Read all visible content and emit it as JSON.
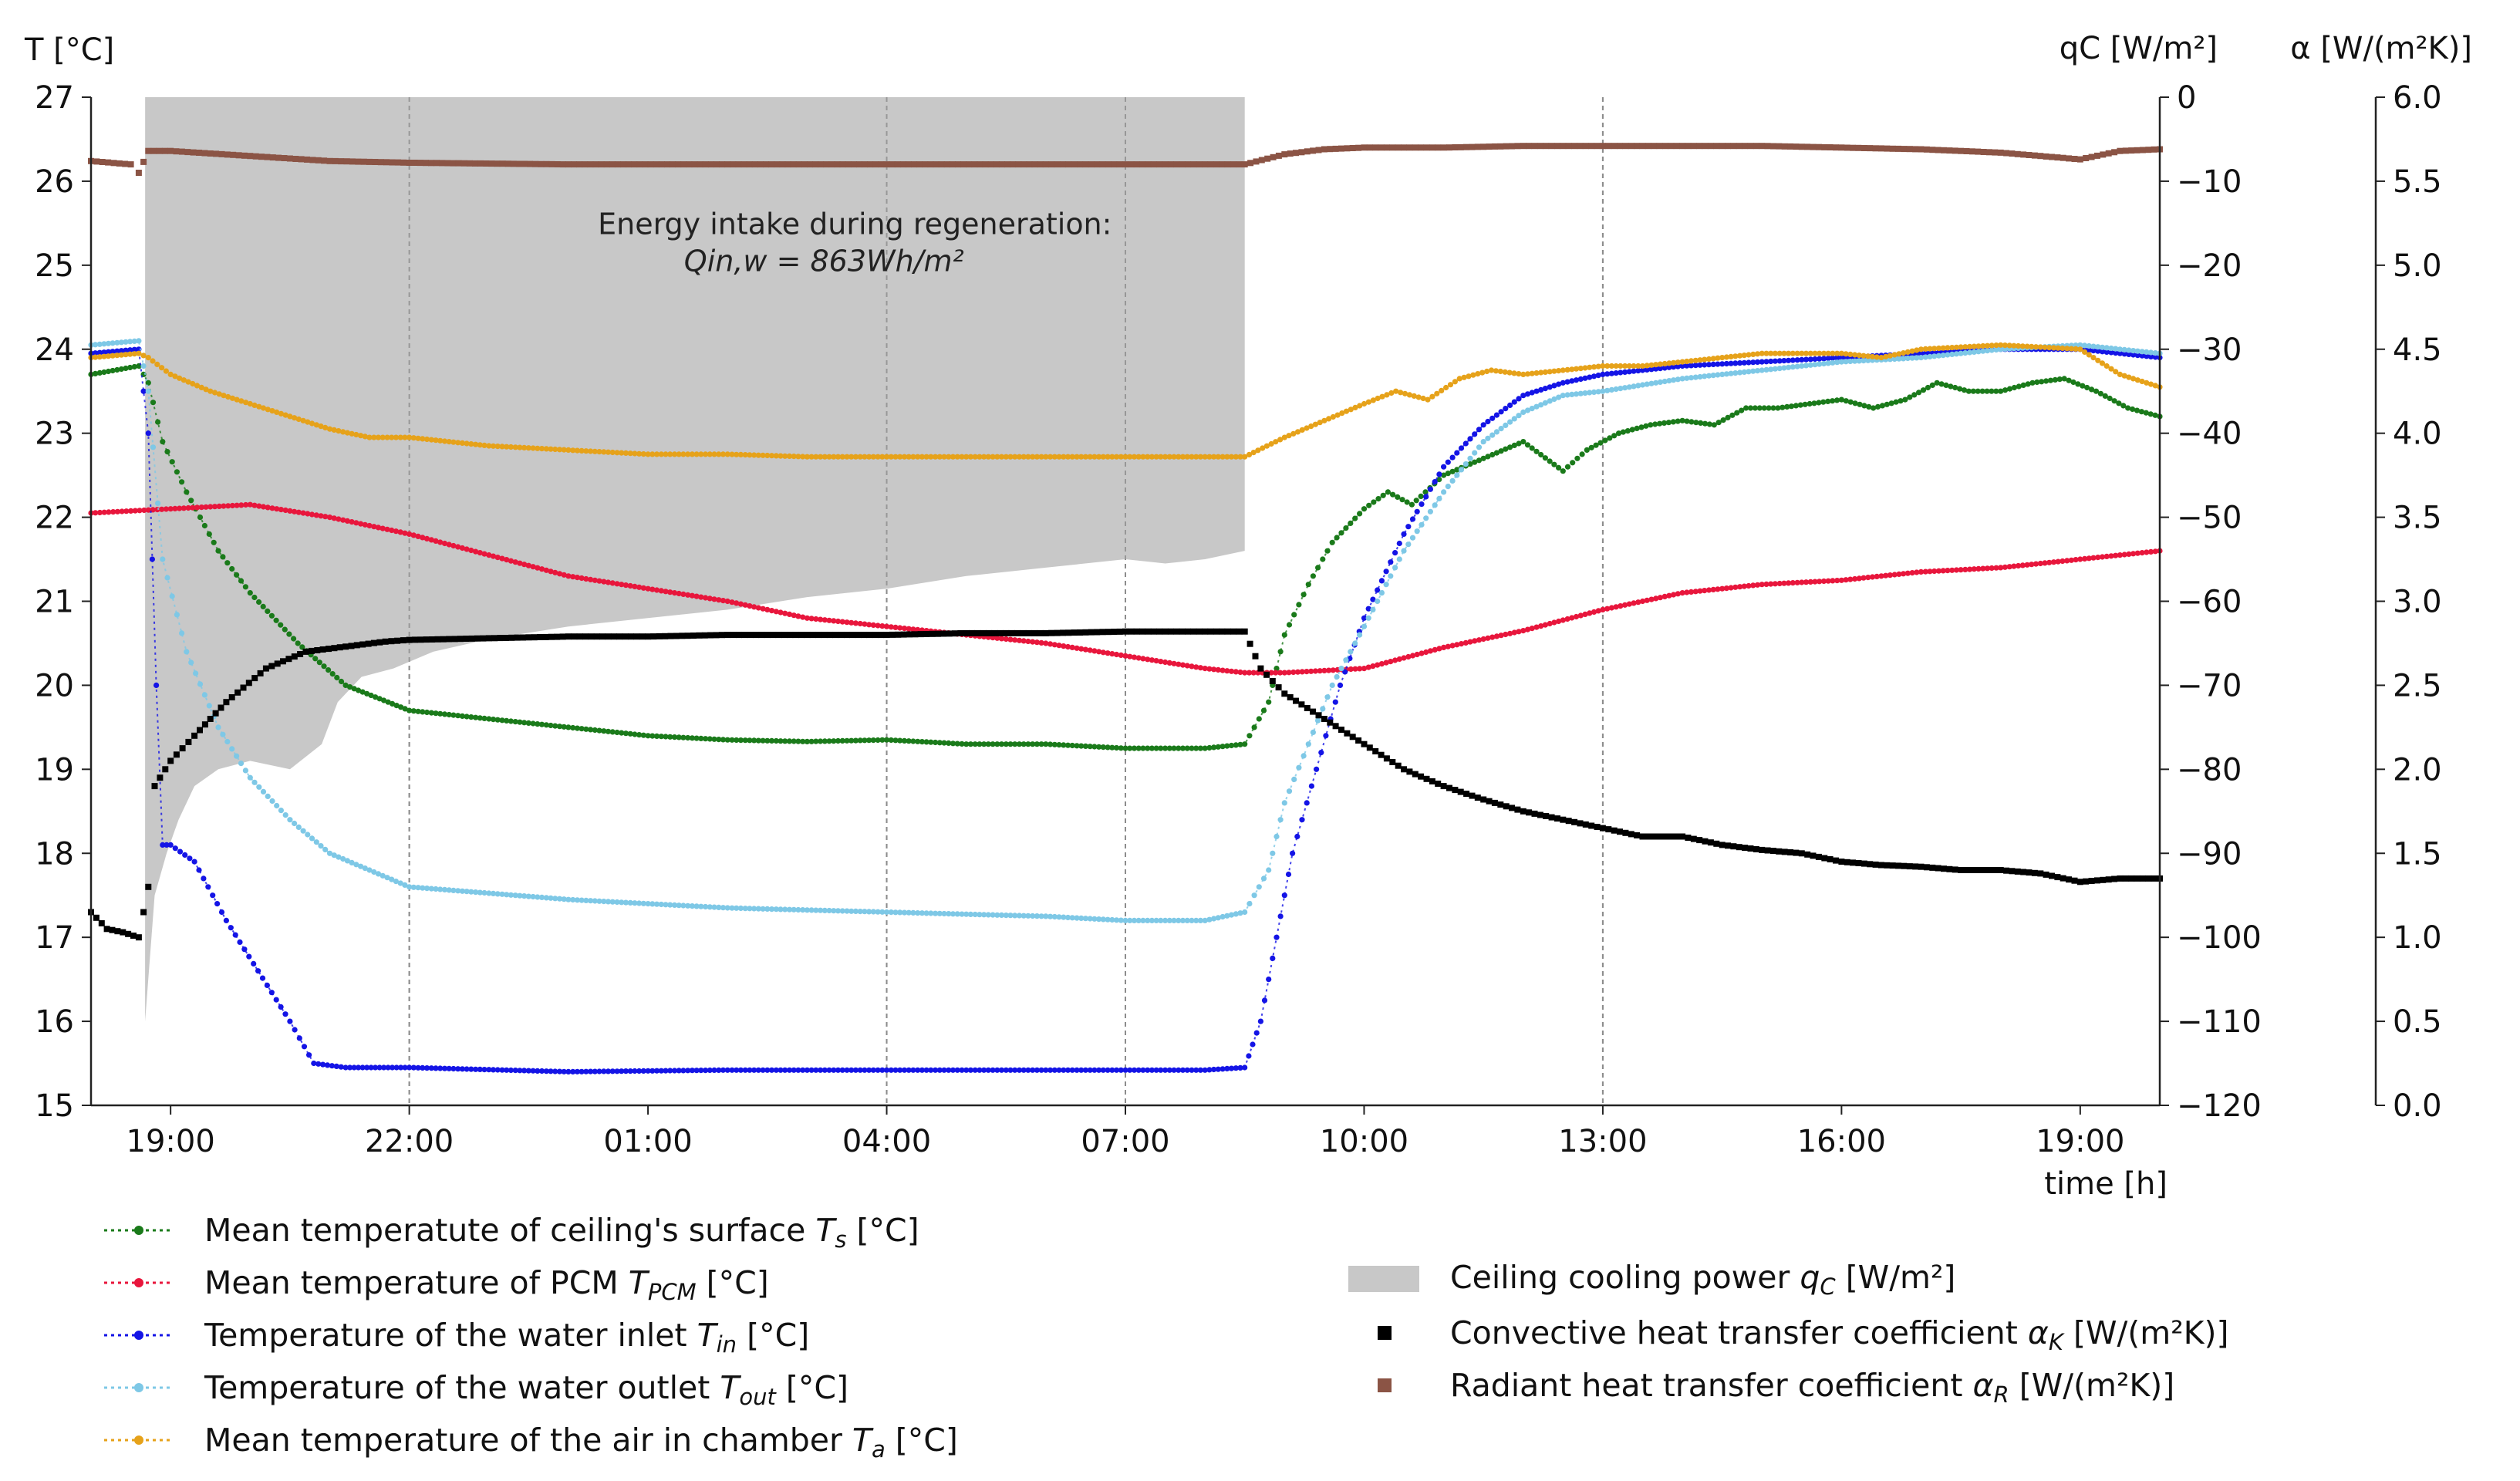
{
  "chart_data": {
    "type": "line",
    "title": "",
    "xlabel": "time [h]",
    "x_unit": "hours since 18:00",
    "xlim": [
      0,
      26
    ],
    "x_ticks": [
      {
        "x": 1,
        "label": "19:00"
      },
      {
        "x": 4,
        "label": "22:00"
      },
      {
        "x": 7,
        "label": "01:00"
      },
      {
        "x": 10,
        "label": "04:00"
      },
      {
        "x": 13,
        "label": "07:00"
      },
      {
        "x": 16,
        "label": "10:00"
      },
      {
        "x": 19,
        "label": "13:00"
      },
      {
        "x": 22,
        "label": "16:00"
      },
      {
        "x": 25,
        "label": "19:00"
      }
    ],
    "vertical_gridlines_x": [
      4,
      10,
      13,
      19
    ],
    "axes": {
      "left": {
        "label": "T [°C]",
        "range": [
          15,
          27
        ],
        "ticks": [
          15,
          16,
          17,
          18,
          19,
          20,
          21,
          22,
          23,
          24,
          25,
          26,
          27
        ]
      },
      "q": {
        "label": "qC [W/m²]",
        "range": [
          -120,
          0
        ],
        "ticks": [
          0,
          -10,
          -20,
          -30,
          -40,
          -50,
          -60,
          -70,
          -80,
          -90,
          -100,
          -110,
          -120
        ],
        "tick_labels": [
          "0",
          "−10",
          "−20",
          "−30",
          "−40",
          "−50",
          "−60",
          "−70",
          "−80",
          "−90",
          "−100",
          "−110",
          "−120"
        ]
      },
      "alpha": {
        "label": "α [W/(m²K)]",
        "range": [
          0,
          6
        ],
        "ticks": [
          0,
          0.5,
          1,
          1.5,
          2,
          2.5,
          3,
          3.5,
          4,
          4.5,
          5,
          5.5,
          6
        ],
        "tick_labels": [
          "0.0",
          "0.5",
          "1.0",
          "1.5",
          "2.0",
          "2.5",
          "3.0",
          "3.5",
          "4.0",
          "4.5",
          "5.0",
          "5.5",
          "6.0"
        ]
      }
    },
    "annotation": {
      "line1": "Energy intake during regeneration:",
      "line2": "Qin,w = 863Wh/m²",
      "x": 9.6,
      "y": 25.5
    },
    "area_series": {
      "name": "Ceiling cooling power qC [W/m²]",
      "axis": "q",
      "color": "#c8c8c8",
      "x": [
        0.68,
        0.8,
        0.95,
        1.1,
        1.3,
        1.6,
        2.0,
        2.5,
        2.9,
        3.1,
        3.4,
        3.8,
        4.3,
        5.0,
        6.0,
        7.0,
        8.0,
        9.0,
        10.0,
        11.0,
        12.0,
        13.0,
        13.5,
        14.0,
        14.5,
        14.5
      ],
      "values": [
        -110,
        -95,
        -90,
        -86,
        -82,
        -80,
        -79,
        -80,
        -77,
        -72,
        -69,
        -68,
        -66,
        -64.5,
        -63,
        -62,
        -61,
        -59.5,
        -58.5,
        -57,
        -56,
        -55,
        -55.5,
        -55,
        -54,
        0
      ]
    },
    "series": [
      {
        "name": "Mean temperatute of ceiling's surface",
        "sym": "T",
        "sub": "s",
        "unit": " [°C]",
        "axis": "left",
        "color": "#1a7a1a",
        "x": [
          0,
          0.6,
          0.72,
          0.9,
          1.2,
          1.6,
          2.0,
          2.6,
          3.2,
          4.0,
          5.0,
          6.0,
          7.0,
          8.0,
          9.0,
          10.0,
          11.0,
          12.0,
          13.0,
          14.0,
          14.5,
          14.8,
          15.0,
          15.3,
          15.6,
          16.0,
          16.3,
          16.6,
          17.0,
          17.5,
          18.0,
          18.5,
          18.8,
          19.2,
          19.6,
          20.0,
          20.4,
          20.8,
          21.2,
          21.6,
          22.0,
          22.4,
          22.8,
          23.2,
          23.6,
          24.0,
          24.4,
          24.8,
          25.2,
          25.6,
          26.0
        ],
        "values": [
          23.7,
          23.8,
          23.6,
          22.9,
          22.3,
          21.6,
          21.1,
          20.5,
          20.0,
          19.7,
          19.6,
          19.5,
          19.4,
          19.35,
          19.33,
          19.35,
          19.3,
          19.3,
          19.25,
          19.25,
          19.3,
          19.8,
          20.6,
          21.2,
          21.7,
          22.1,
          22.3,
          22.15,
          22.5,
          22.7,
          22.9,
          22.55,
          22.8,
          23.0,
          23.1,
          23.15,
          23.1,
          23.3,
          23.3,
          23.35,
          23.4,
          23.3,
          23.4,
          23.6,
          23.5,
          23.5,
          23.6,
          23.65,
          23.5,
          23.3,
          23.2
        ]
      },
      {
        "name": "Mean temperature of PCM",
        "sym": "T",
        "sub": "PCM",
        "unit": " [°C]",
        "axis": "left",
        "color": "#e8163c",
        "x": [
          0,
          1,
          2,
          3,
          4,
          5,
          6,
          7,
          8,
          9,
          10,
          11,
          12,
          13,
          14,
          14.5,
          15,
          16,
          17,
          18,
          19,
          20,
          21,
          22,
          23,
          24,
          25,
          26
        ],
        "values": [
          22.05,
          22.1,
          22.15,
          22.0,
          21.8,
          21.55,
          21.3,
          21.15,
          21.0,
          20.8,
          20.7,
          20.6,
          20.5,
          20.35,
          20.2,
          20.15,
          20.15,
          20.2,
          20.45,
          20.65,
          20.9,
          21.1,
          21.2,
          21.25,
          21.35,
          21.4,
          21.5,
          21.6
        ]
      },
      {
        "name": "Temperature of the water inlet",
        "sym": "T",
        "sub": "in",
        "unit": " [°C]",
        "axis": "left",
        "color": "#1414e6",
        "x": [
          0,
          0.6,
          0.72,
          0.82,
          0.9,
          1.0,
          1.3,
          1.7,
          2.1,
          2.5,
          2.8,
          3.2,
          4,
          6,
          8,
          10,
          12,
          13,
          14,
          14.5,
          14.7,
          14.9,
          15.1,
          15.4,
          15.7,
          16.0,
          16.5,
          17.0,
          17.5,
          18.0,
          18.5,
          19.0,
          19.5,
          20.0,
          21.0,
          22.0,
          23.0,
          24.0,
          25.0,
          26.0
        ],
        "values": [
          23.95,
          24.0,
          23.0,
          20.0,
          18.1,
          18.1,
          17.9,
          17.2,
          16.6,
          16.0,
          15.5,
          15.45,
          15.45,
          15.4,
          15.42,
          15.42,
          15.42,
          15.42,
          15.42,
          15.45,
          16.0,
          17.0,
          18.0,
          19.0,
          20.0,
          20.8,
          21.8,
          22.6,
          23.1,
          23.45,
          23.6,
          23.7,
          23.75,
          23.8,
          23.85,
          23.9,
          23.95,
          24.0,
          24.0,
          23.9
        ]
      },
      {
        "name": "Temperature of the water outlet",
        "sym": "T",
        "sub": "out",
        "unit": " [°C]",
        "axis": "left",
        "color": "#7ec8e6",
        "x": [
          0,
          0.6,
          0.72,
          0.9,
          1.2,
          1.6,
          2.0,
          2.5,
          3.0,
          3.5,
          4.0,
          6.0,
          8.0,
          10.0,
          12.0,
          13.0,
          14.0,
          14.5,
          14.8,
          15.0,
          15.3,
          15.6,
          16.0,
          16.5,
          17.0,
          17.5,
          18.0,
          18.5,
          19.0,
          20.0,
          21.0,
          22.0,
          23.0,
          24.0,
          25.0,
          26.0
        ],
        "values": [
          24.05,
          24.1,
          23.5,
          21.5,
          20.4,
          19.5,
          18.9,
          18.4,
          18.0,
          17.8,
          17.6,
          17.45,
          17.35,
          17.3,
          17.25,
          17.2,
          17.2,
          17.3,
          17.8,
          18.6,
          19.3,
          20.0,
          20.7,
          21.6,
          22.3,
          22.9,
          23.25,
          23.45,
          23.5,
          23.65,
          23.75,
          23.85,
          23.9,
          24.0,
          24.05,
          23.95
        ]
      },
      {
        "name": "Mean temperature of the air in chamber",
        "sym": "T",
        "sub": "a",
        "unit": " [°C]",
        "axis": "left",
        "color": "#e6a21a",
        "x": [
          0,
          0.6,
          0.72,
          1.0,
          1.5,
          2.0,
          2.5,
          3.0,
          3.5,
          4.0,
          5.0,
          6.0,
          7.0,
          8.0,
          9.0,
          10.0,
          11.0,
          12.0,
          13.0,
          14.0,
          14.5,
          15.0,
          15.5,
          16.0,
          16.4,
          16.8,
          17.2,
          17.6,
          18.0,
          18.5,
          19.0,
          19.5,
          20.0,
          21.0,
          22.0,
          22.5,
          23.0,
          24.0,
          25.0,
          25.5,
          26.0
        ],
        "values": [
          23.9,
          23.95,
          23.9,
          23.7,
          23.5,
          23.35,
          23.2,
          23.05,
          22.95,
          22.95,
          22.85,
          22.8,
          22.75,
          22.75,
          22.72,
          22.72,
          22.72,
          22.72,
          22.72,
          22.72,
          22.72,
          22.95,
          23.15,
          23.35,
          23.5,
          23.4,
          23.65,
          23.75,
          23.7,
          23.75,
          23.8,
          23.8,
          23.85,
          23.95,
          23.95,
          23.9,
          24.0,
          24.05,
          24.0,
          23.7,
          23.55
        ]
      },
      {
        "name": "Convective heat transfer coefficient",
        "sym": "α",
        "sub": "K",
        "unit": " [W/(m²K)]",
        "axis": "alpha",
        "color": "#000000",
        "marker": "square",
        "x": [
          0,
          0.2,
          0.4,
          0.6,
          0.72,
          0.8,
          1.0,
          1.3,
          1.7,
          2.2,
          2.7,
          3.2,
          3.7,
          4.0,
          5,
          6,
          7,
          8,
          9,
          10,
          11,
          12,
          13,
          14,
          14.5,
          14.7,
          15.0,
          15.5,
          16.0,
          16.5,
          17.0,
          17.5,
          18.0,
          18.5,
          19.0,
          19.5,
          20.0,
          20.5,
          21.0,
          21.5,
          22.0,
          22.5,
          23.0,
          23.5,
          24.0,
          24.5,
          25.0,
          25.5,
          26.0
        ],
        "values": [
          1.15,
          1.05,
          1.03,
          1.0,
          1.3,
          1.9,
          2.05,
          2.2,
          2.4,
          2.6,
          2.7,
          2.73,
          2.76,
          2.77,
          2.78,
          2.79,
          2.79,
          2.8,
          2.8,
          2.8,
          2.81,
          2.81,
          2.82,
          2.82,
          2.82,
          2.6,
          2.45,
          2.3,
          2.15,
          2.0,
          1.9,
          1.82,
          1.75,
          1.7,
          1.65,
          1.6,
          1.6,
          1.55,
          1.52,
          1.5,
          1.45,
          1.43,
          1.42,
          1.4,
          1.4,
          1.38,
          1.33,
          1.35,
          1.35
        ]
      },
      {
        "name": "Radiant heat transfer coefficient",
        "sym": "α",
        "sub": "R",
        "unit": " [W/(m²K)]",
        "axis": "alpha",
        "color": "#8b5445",
        "marker": "square",
        "x": [
          0,
          0.5,
          0.6,
          0.72,
          1.0,
          2.0,
          3.0,
          4.0,
          6.0,
          8.0,
          10.0,
          12.0,
          13.0,
          14.0,
          14.5,
          15.0,
          15.5,
          16.0,
          17.0,
          18.0,
          19.0,
          20.0,
          21.0,
          22.0,
          23.0,
          24.0,
          25.0,
          25.5,
          26.0
        ],
        "values": [
          5.62,
          5.6,
          5.55,
          5.68,
          5.68,
          5.65,
          5.62,
          5.61,
          5.6,
          5.6,
          5.6,
          5.6,
          5.6,
          5.6,
          5.6,
          5.66,
          5.69,
          5.7,
          5.7,
          5.71,
          5.71,
          5.71,
          5.71,
          5.7,
          5.69,
          5.67,
          5.63,
          5.68,
          5.69
        ]
      }
    ]
  }
}
